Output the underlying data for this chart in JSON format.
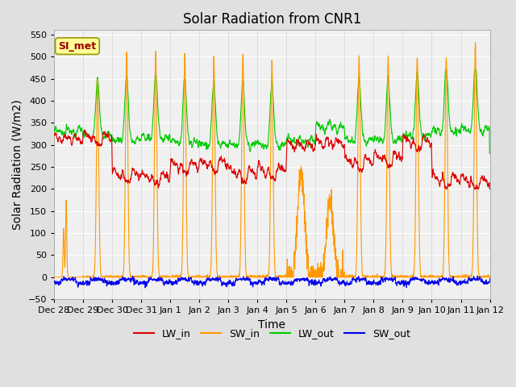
{
  "title": "Solar Radiation from CNR1",
  "xlabel": "Time",
  "ylabel": "Solar Radiation (W/m2)",
  "annotation": "SI_met",
  "ylim": [
    -50,
    560
  ],
  "yticks": [
    -50,
    0,
    50,
    100,
    150,
    200,
    250,
    300,
    350,
    400,
    450,
    500,
    550
  ],
  "line_colors": {
    "LW_in": "#dd0000",
    "SW_in": "#ff9900",
    "LW_out": "#00cc00",
    "SW_out": "#0000ee"
  },
  "figure_bg": "#e0e0e0",
  "plot_bg": "#f0f0f0",
  "grid_color": "#ffffff",
  "annotation_bg": "#ffff99",
  "annotation_border": "#999900",
  "annotation_text_color": "#990000",
  "title_fontsize": 12,
  "axis_label_fontsize": 10,
  "tick_label_fontsize": 8,
  "legend_fontsize": 9,
  "x_tick_labels": [
    "Dec 28",
    "Dec 29",
    "Dec 30",
    "Dec 31",
    "Jan 1",
    "Jan 2",
    "Jan 3",
    "Jan 4",
    "Jan 5",
    "Jan 6",
    "Jan 7",
    "Jan 8",
    "Jan 9",
    "Jan 10",
    "Jan 11",
    "Jan 12"
  ]
}
